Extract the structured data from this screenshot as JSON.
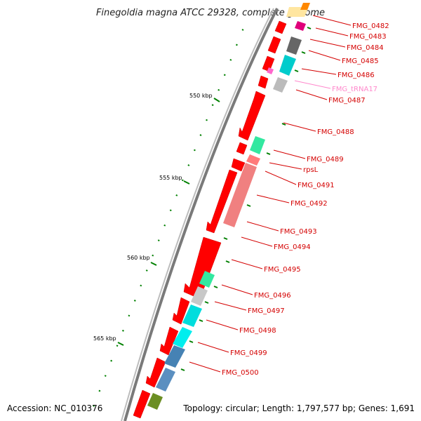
{
  "title": "Finegoldia magna ATCC 29328, complete genome",
  "accession_text": "Accession: NC_010376",
  "topology_text": "Topology: circular; Length: 1,797,577 bp; Genes: 1,691",
  "scale_ticks": [
    "550 kbp",
    "555 kbp",
    "560 kbp",
    "565 kbp"
  ],
  "colors": {
    "label_red": "#d40000",
    "label_pink": "#ff66cc",
    "cds_red": "#ff0000",
    "tick_green": "#008000",
    "backbone": "#888888"
  },
  "gene_labels": [
    {
      "text": "FMG_0482",
      "color": "#d40000"
    },
    {
      "text": "FMG_0483",
      "color": "#d40000"
    },
    {
      "text": "FMG_0484",
      "color": "#d40000"
    },
    {
      "text": "FMG_0485",
      "color": "#d40000"
    },
    {
      "text": "FMG_0486",
      "color": "#d40000"
    },
    {
      "text": "FMG_tRNA17",
      "color": "#ff88cc"
    },
    {
      "text": "FMG_0487",
      "color": "#d40000"
    },
    {
      "text": "FMG_0488",
      "color": "#d40000"
    },
    {
      "text": "FMG_0489",
      "color": "#d40000"
    },
    {
      "text": "rpsL",
      "color": "#d40000"
    },
    {
      "text": "FMG_0491",
      "color": "#d40000"
    },
    {
      "text": "FMG_0492",
      "color": "#d40000"
    },
    {
      "text": "FMG_0493",
      "color": "#d40000"
    },
    {
      "text": "FMG_0494",
      "color": "#d40000"
    },
    {
      "text": "FMG_0495",
      "color": "#d40000"
    },
    {
      "text": "FMG_0496",
      "color": "#d40000"
    },
    {
      "text": "FMG_0497",
      "color": "#d40000"
    },
    {
      "text": "FMG_0498",
      "color": "#d40000"
    },
    {
      "text": "FMG_0499",
      "color": "#d40000"
    },
    {
      "text": "FMG_0500",
      "color": "#d40000"
    }
  ]
}
